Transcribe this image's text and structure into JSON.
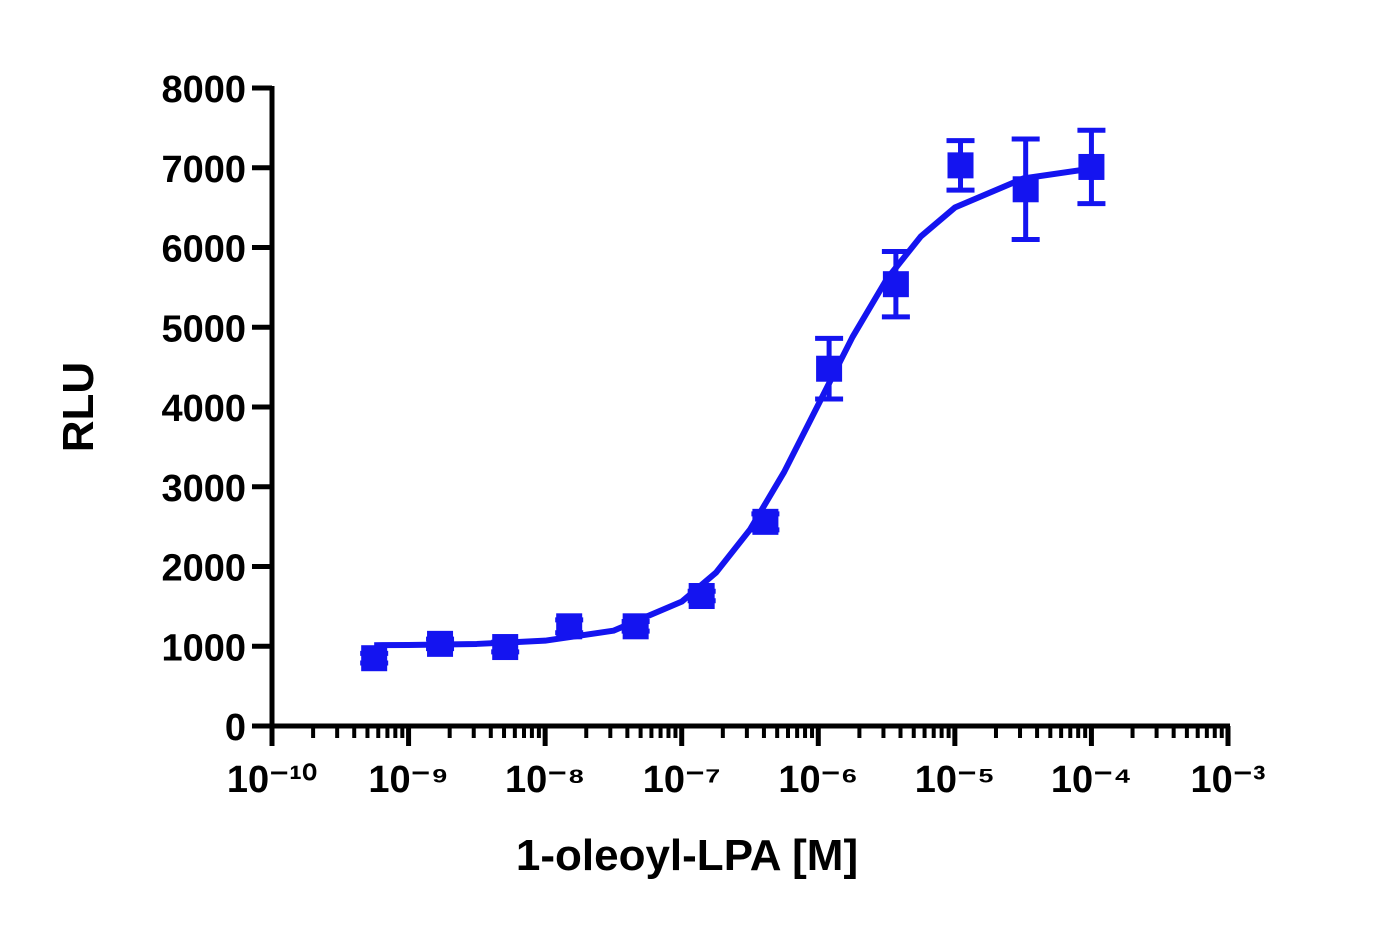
{
  "chart_data": {
    "type": "scatter",
    "xlabel": "1-oleoyl-LPA [M]",
    "ylabel": "RLU",
    "xscale": "log",
    "xlim": [
      1e-10,
      0.001
    ],
    "xticks": [
      {
        "value": 1e-10,
        "label": "10⁻¹⁰"
      },
      {
        "value": 1e-09,
        "label": "10⁻⁹"
      },
      {
        "value": 1e-08,
        "label": "10⁻⁸"
      },
      {
        "value": 1e-07,
        "label": "10⁻⁷"
      },
      {
        "value": 1e-06,
        "label": "10⁻⁶"
      },
      {
        "value": 1e-05,
        "label": "10⁻⁵"
      },
      {
        "value": 0.0001,
        "label": "10⁻⁴"
      },
      {
        "value": 0.001,
        "label": "10⁻³"
      }
    ],
    "xminor_ticks": [
      2e-10,
      3e-10,
      4e-10,
      5e-10,
      6e-10,
      7e-10,
      8e-10,
      9e-10,
      2e-09,
      3e-09,
      4e-09,
      5e-09,
      6e-09,
      7e-09,
      8e-09,
      9e-09,
      2e-08,
      3e-08,
      4e-08,
      5e-08,
      6e-08,
      7e-08,
      8e-08,
      9e-08,
      2e-07,
      3e-07,
      4e-07,
      5e-07,
      6e-07,
      7e-07,
      8e-07,
      9e-07,
      2e-06,
      3e-06,
      4e-06,
      5e-06,
      6e-06,
      7e-06,
      8e-06,
      9e-06,
      2e-05,
      3e-05,
      4e-05,
      5e-05,
      6e-05,
      7e-05,
      8e-05,
      9e-05,
      0.0002,
      0.0003,
      0.0004,
      0.0005,
      0.0006,
      0.0007,
      0.0008,
      0.0009
    ],
    "ylim": [
      0,
      8000
    ],
    "yticks": [
      0,
      1000,
      2000,
      3000,
      4000,
      5000,
      6000,
      7000,
      8000
    ],
    "series": [
      {
        "color": "#1414f0",
        "x": [
          5.6e-10,
          1.7e-09,
          5.1e-09,
          1.5e-08,
          4.6e-08,
          1.4e-07,
          4.1e-07,
          1.2e-06,
          3.7e-06,
          1.1e-05,
          3.3e-05,
          0.0001
        ],
        "values": [
          850,
          1030,
          990,
          1250,
          1250,
          1630,
          2560,
          4480,
          5540,
          7030,
          6730,
          7010
        ],
        "errors": [
          60,
          60,
          60,
          80,
          60,
          60,
          100,
          380,
          410,
          310,
          630,
          460
        ]
      }
    ],
    "fit": {
      "color": "#1414f0",
      "x": [
        5.6e-10,
        1e-09,
        3.16e-09,
        1e-08,
        3.16e-08,
        1e-07,
        1.78e-07,
        3.16e-07,
        5.62e-07,
        1e-06,
        1.78e-06,
        3.16e-06,
        5.62e-06,
        1e-05,
        3.16e-05,
        0.0001
      ],
      "values": [
        1013,
        1016,
        1029,
        1070,
        1195,
        1559,
        1922,
        2462,
        3184,
        4030,
        4877,
        5599,
        6137,
        6501,
        6865,
        6990
      ]
    }
  }
}
